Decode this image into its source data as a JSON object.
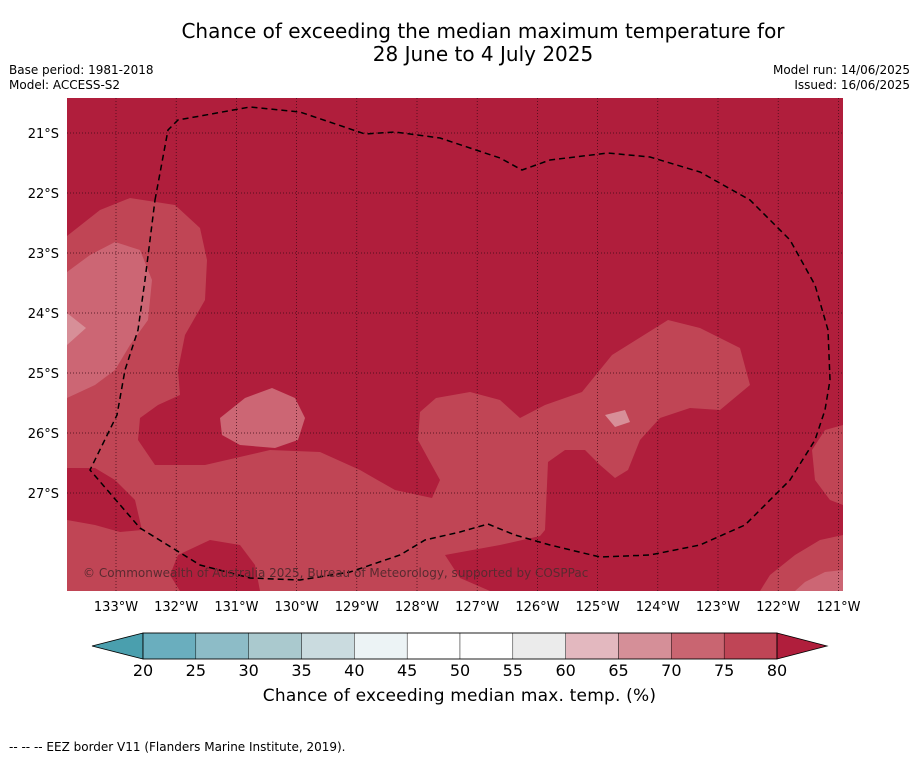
{
  "title_line1": "Chance of exceeding the median maximum temperature for",
  "title_line2": "28 June to 4 July 2025",
  "base_period": "Base period: 1981-2018",
  "model": "Model: ACCESS-S2",
  "model_run": "Model run: 14/06/2025",
  "issued": "Issued: 16/06/2025",
  "copyright": "© Commonwealth of Australia 2025, Bureau of Meteorology, supported by COSPPac",
  "lat_labels": [
    "21°S",
    "22°S",
    "23°S",
    "24°S",
    "25°S",
    "26°S",
    "27°S"
  ],
  "lon_labels": [
    "133°W",
    "132°W",
    "131°W",
    "130°W",
    "129°W",
    "128°W",
    "127°W",
    "126°W",
    "125°W",
    "124°W",
    "123°W",
    "122°W",
    "121°W"
  ],
  "colorbar": {
    "title": "Chance of exceeding median max. temp. (%)",
    "ticks": [
      "20",
      "25",
      "30",
      "35",
      "40",
      "45",
      "50",
      "55",
      "60",
      "65",
      "70",
      "75",
      "80"
    ],
    "colors": [
      "#6aaebe",
      "#8dbcc7",
      "#aac9ce",
      "#cadbdf",
      "#ecf3f5",
      "#ffffff",
      "#ffffff",
      "#ebebeb",
      "#e3b8bf",
      "#d58f98",
      "#c96571",
      "#bf4556"
    ],
    "low_extend_color": "#4a9fae",
    "high_extend_color": "#b01e3c"
  },
  "palette": {
    "c80": "#b01e3c",
    "c75": "#c04555",
    "c70": "#cc6674",
    "c65": "#d78f98"
  },
  "footnote": "--  --  -- EEZ border V11 (Flanders Marine Institute, 2019)."
}
